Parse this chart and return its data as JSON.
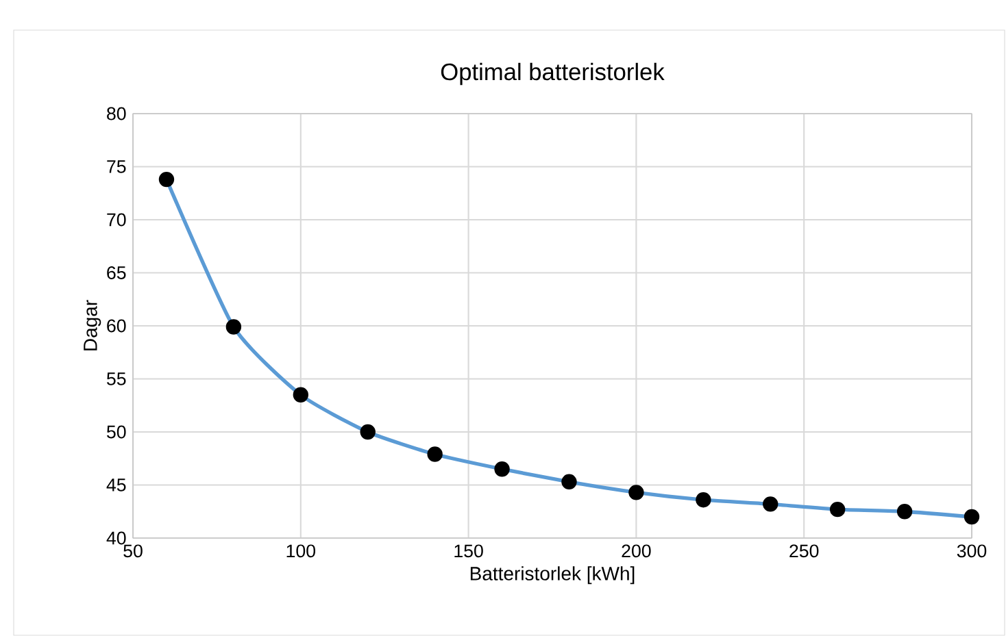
{
  "chart_data": {
    "type": "line",
    "title": "Optimal batteristorlek",
    "xlabel": "Batteristorlek [kWh]",
    "ylabel": "Dagar",
    "x": [
      60,
      80,
      100,
      120,
      140,
      160,
      180,
      200,
      220,
      240,
      260,
      280,
      300
    ],
    "series": [
      {
        "color": "#5b9bd5",
        "values": [
          73.8,
          59.9,
          53.5,
          50.0,
          47.9,
          46.5,
          45.3,
          44.3,
          43.6,
          43.2,
          42.7,
          42.5,
          42.0
        ]
      }
    ],
    "xlim": [
      50,
      300
    ],
    "xticks": [
      50,
      100,
      150,
      200,
      250,
      300
    ],
    "ylim": [
      40,
      80
    ],
    "yticks": [
      40,
      45,
      50,
      55,
      60,
      65,
      70,
      75,
      80
    ],
    "grid": true,
    "marker": "circle",
    "line_style": "solid"
  }
}
